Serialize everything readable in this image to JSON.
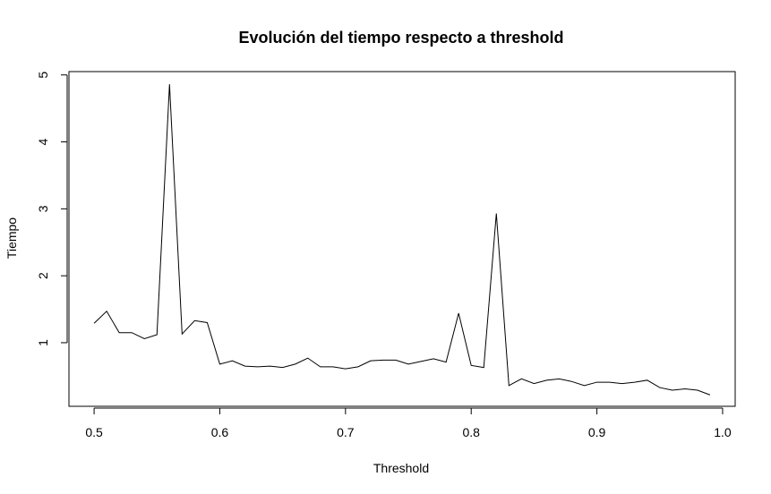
{
  "chart_data": {
    "type": "line",
    "title": "Evolución del tiempo respecto a threshold",
    "xlabel": "Threshold",
    "ylabel": "Tiempo",
    "xlim": [
      0.48,
      1.01
    ],
    "ylim": [
      0.05,
      5.05
    ],
    "x_ticks": [
      0.5,
      0.6,
      0.7,
      0.8,
      0.9,
      1.0
    ],
    "x_tick_labels": [
      "0.5",
      "0.6",
      "0.7",
      "0.8",
      "0.9",
      "1.0"
    ],
    "y_ticks": [
      1,
      2,
      3,
      4,
      5
    ],
    "y_tick_labels": [
      "1",
      "2",
      "3",
      "4",
      "5"
    ],
    "grid": false,
    "line_color": "#000000",
    "series": [
      {
        "x": [
          0.5,
          0.51,
          0.52,
          0.53,
          0.54,
          0.55,
          0.56,
          0.57,
          0.58,
          0.59,
          0.6,
          0.61,
          0.62,
          0.63,
          0.64,
          0.65,
          0.66,
          0.67,
          0.68,
          0.69,
          0.7,
          0.71,
          0.72,
          0.73,
          0.74,
          0.75,
          0.76,
          0.77,
          0.78,
          0.79,
          0.8,
          0.81,
          0.82,
          0.83,
          0.84,
          0.85,
          0.86,
          0.87,
          0.88,
          0.89,
          0.9,
          0.91,
          0.92,
          0.93,
          0.94,
          0.95,
          0.96,
          0.97,
          0.98,
          0.99
        ],
        "values": [
          1.29,
          1.47,
          1.15,
          1.15,
          1.06,
          1.12,
          4.86,
          1.13,
          1.33,
          1.3,
          0.68,
          0.73,
          0.65,
          0.64,
          0.65,
          0.63,
          0.68,
          0.77,
          0.64,
          0.64,
          0.61,
          0.64,
          0.73,
          0.74,
          0.74,
          0.68,
          0.72,
          0.76,
          0.71,
          1.44,
          0.66,
          0.63,
          2.93,
          0.36,
          0.46,
          0.39,
          0.44,
          0.46,
          0.42,
          0.36,
          0.41,
          0.41,
          0.39,
          0.41,
          0.44,
          0.33,
          0.29,
          0.31,
          0.29,
          0.22
        ]
      }
    ]
  }
}
